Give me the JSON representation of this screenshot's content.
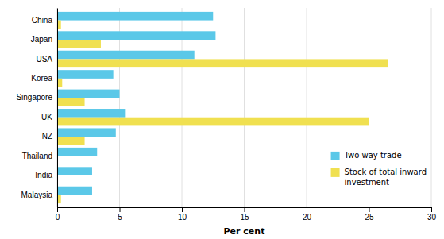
{
  "chart_data": {
    "type": "bar",
    "orientation": "horizontal",
    "categories": [
      "China",
      "Japan",
      "USA",
      "Korea",
      "Singapore",
      "UK",
      "NZ",
      "Thailand",
      "India",
      "Malaysia"
    ],
    "series": [
      {
        "name": "Two way trade",
        "color": "#5BC8E8",
        "values": [
          12.5,
          12.7,
          11.0,
          4.5,
          5.0,
          5.5,
          4.7,
          3.2,
          2.8,
          2.8
        ]
      },
      {
        "name": "Stock of total inward\ninvestment",
        "color": "#F0E050",
        "values": [
          0.3,
          3.5,
          26.5,
          0.4,
          2.2,
          25.0,
          2.2,
          0.0,
          0.0,
          0.3
        ]
      }
    ],
    "xlabel": "Per cent",
    "xlim": [
      0,
      30
    ],
    "xticks": [
      0,
      5,
      10,
      15,
      20,
      25,
      30
    ],
    "grid": true,
    "legend": "lower right"
  }
}
